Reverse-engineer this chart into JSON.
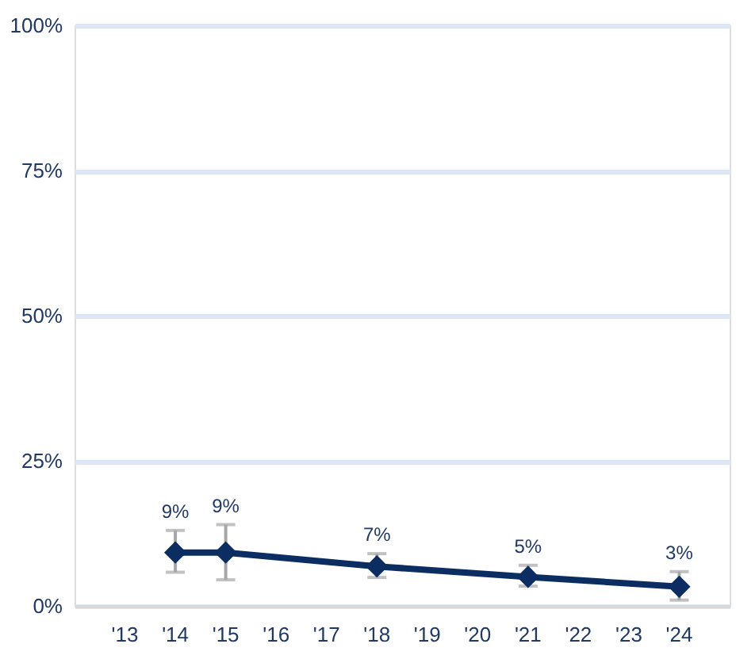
{
  "chart_data": {
    "type": "line",
    "categories": [
      "'13",
      "'14",
      "'15",
      "'16",
      "'17",
      "'18",
      "'19",
      "'20",
      "'21",
      "'22",
      "'23",
      "'24"
    ],
    "series": [
      {
        "color": "#0b2d62",
        "values": [
          null,
          9.2,
          9.2,
          null,
          null,
          6.8,
          null,
          null,
          5.0,
          null,
          null,
          3.3
        ],
        "errors": [
          null,
          [
            5.8,
            13.0
          ],
          [
            4.5,
            14.0
          ],
          null,
          null,
          [
            4.9,
            9.0
          ],
          null,
          null,
          [
            3.4,
            7.0
          ],
          null,
          null,
          [
            1.0,
            5.9
          ]
        ],
        "value_labels": [
          null,
          "9%",
          "9%",
          null,
          null,
          "7%",
          null,
          null,
          "5%",
          null,
          null,
          "3%"
        ]
      }
    ],
    "ylim": [
      0,
      100
    ],
    "yticks": [
      {
        "value": 0,
        "label": "0%"
      },
      {
        "value": 25,
        "label": "25%"
      },
      {
        "value": 50,
        "label": "50%"
      },
      {
        "value": 75,
        "label": "75%"
      },
      {
        "value": 100,
        "label": "100%"
      }
    ],
    "grid": "y",
    "marker": "diamond",
    "line_style": "solid"
  }
}
